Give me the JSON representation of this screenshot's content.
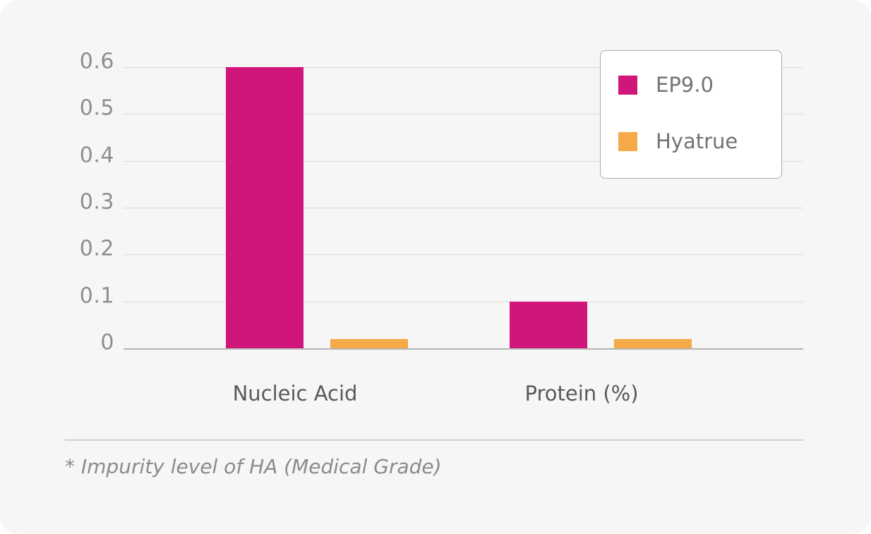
{
  "chart_data": {
    "type": "bar",
    "categories": [
      "Nucleic Acid",
      "Protein (%)"
    ],
    "series": [
      {
        "name": "EP9.0",
        "color": "#d1167b",
        "values": [
          0.6,
          0.1
        ]
      },
      {
        "name": "Hyatrue",
        "color": "#f5a947",
        "values": [
          0.02,
          0.02
        ]
      }
    ],
    "title": "",
    "xlabel": "",
    "ylabel": "",
    "ylim": [
      0,
      0.6
    ],
    "ytick_labels": [
      "0",
      "0.1",
      "0.2",
      "0.3",
      "0.4",
      "0.5",
      "0.6"
    ],
    "grid": true,
    "legend_position": "top-right",
    "footnote": "* Impurity level of HA (Medical Grade)"
  }
}
